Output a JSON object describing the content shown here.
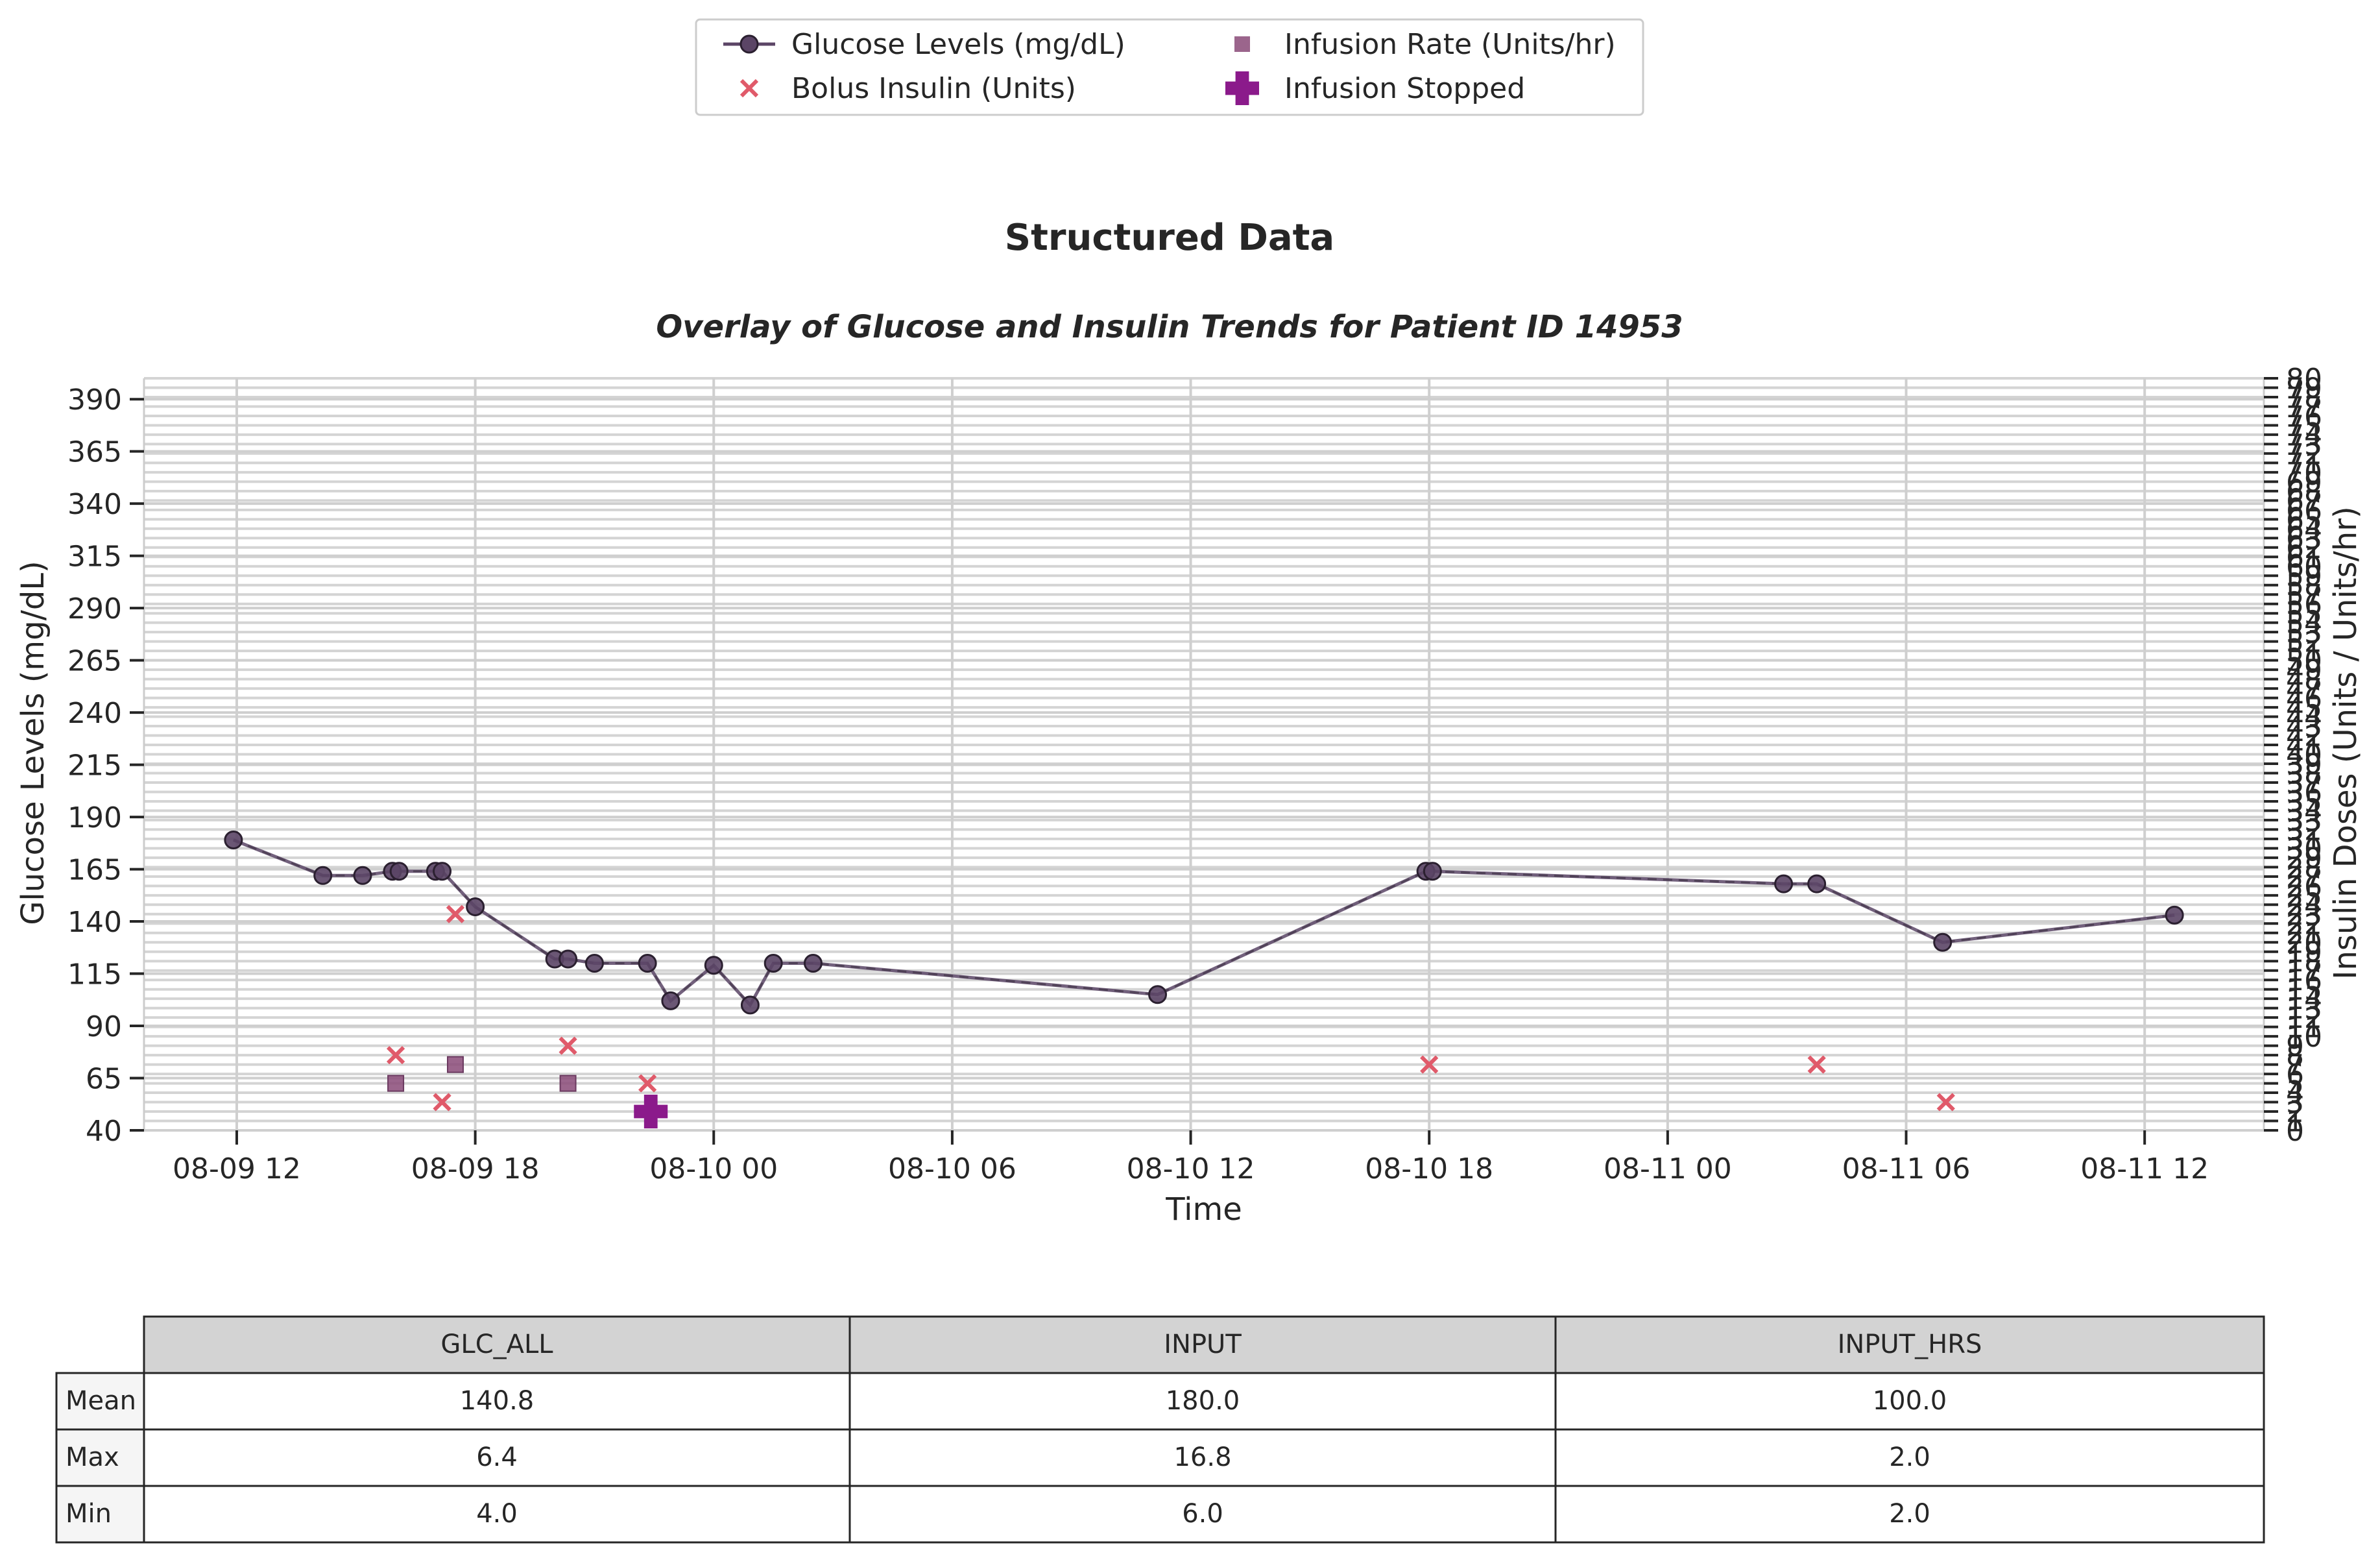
{
  "chart_data": {
    "type": "line",
    "suptitle": "Structured Data",
    "title": "Overlay of Glucose and Insulin Trends for Patient ID 14953",
    "xlabel": "Time",
    "ylabel": "Glucose Levels (mg/dL)",
    "ylabel_right": "Insulin Doses (Units / Units/hr)",
    "ylim": [
      40,
      400
    ],
    "ylim_right": [
      0,
      80
    ],
    "yticks": [
      40,
      65,
      90,
      115,
      140,
      165,
      190,
      215,
      240,
      265,
      290,
      315,
      340,
      365,
      390
    ],
    "yticks_right": [
      0,
      1,
      2,
      3,
      4,
      5,
      6,
      7,
      8,
      9,
      10,
      11,
      12,
      13,
      14,
      15,
      16,
      17,
      18,
      19,
      20,
      21,
      22,
      23,
      24,
      25,
      26,
      27,
      28,
      29,
      30,
      31,
      32,
      33,
      34,
      35,
      36,
      37,
      38,
      39,
      40,
      41,
      42,
      43,
      44,
      45,
      46,
      47,
      48,
      49,
      50,
      51,
      52,
      53,
      54,
      55,
      56,
      57,
      58,
      59,
      60,
      61,
      62,
      63,
      64,
      65,
      66,
      67,
      68,
      69,
      70,
      71,
      72,
      73,
      74,
      75,
      76,
      77,
      78,
      79,
      80
    ],
    "xlim": [
      "2024-08-09 09:40",
      "2024-08-11 15:00"
    ],
    "xticks": [
      {
        "value": "2024-08-09 12:00",
        "label": "08-09 12"
      },
      {
        "value": "2024-08-09 18:00",
        "label": "08-09 18"
      },
      {
        "value": "2024-08-10 00:00",
        "label": "08-10 00"
      },
      {
        "value": "2024-08-10 06:00",
        "label": "08-10 06"
      },
      {
        "value": "2024-08-10 12:00",
        "label": "08-10 12"
      },
      {
        "value": "2024-08-10 18:00",
        "label": "08-10 18"
      },
      {
        "value": "2024-08-11 00:00",
        "label": "08-11 00"
      },
      {
        "value": "2024-08-11 06:00",
        "label": "08-11 06"
      },
      {
        "value": "2024-08-11 12:00",
        "label": "08-11 12"
      }
    ],
    "grid": true,
    "legend_position": "top-center",
    "series": [
      {
        "name": "Glucose Levels (mg/dL)",
        "type": "line",
        "axis": "left",
        "color": "#5b4566",
        "x": [
          "2024-08-09 11:55",
          "2024-08-09 14:10",
          "2024-08-09 15:10",
          "2024-08-09 15:55",
          "2024-08-09 16:05",
          "2024-08-09 17:00",
          "2024-08-09 17:10",
          "2024-08-09 18:00",
          "2024-08-09 20:00",
          "2024-08-09 20:20",
          "2024-08-09 21:00",
          "2024-08-09 22:20",
          "2024-08-09 22:55",
          "2024-08-10 00:00",
          "2024-08-10 00:55",
          "2024-08-10 01:30",
          "2024-08-10 02:30",
          "2024-08-10 11:10",
          "2024-08-10 17:55",
          "2024-08-10 18:05",
          "2024-08-11 02:55",
          "2024-08-11 03:45",
          "2024-08-11 06:55",
          "2024-08-11 12:45"
        ],
        "y": [
          179,
          162,
          162,
          164,
          164,
          164,
          164,
          147,
          122,
          122,
          120,
          120,
          102,
          119,
          100,
          120,
          120,
          105,
          164,
          164,
          158,
          158,
          130,
          143
        ]
      },
      {
        "name": "Bolus Insulin (Units)",
        "type": "scatter",
        "marker": "x",
        "axis": "right",
        "color": "#e05a6a",
        "x": [
          "2024-08-09 16:00",
          "2024-08-09 17:10",
          "2024-08-09 17:30",
          "2024-08-09 20:20",
          "2024-08-09 22:20",
          "2024-08-10 18:00",
          "2024-08-11 03:45",
          "2024-08-11 07:00"
        ],
        "y": [
          8,
          3,
          23,
          9,
          5,
          7,
          7,
          3
        ]
      },
      {
        "name": "Infusion Rate (Units/hr)",
        "type": "scatter",
        "marker": "square",
        "axis": "right",
        "color": "#8a4a78",
        "x": [
          "2024-08-09 16:00",
          "2024-08-09 17:30",
          "2024-08-09 20:20"
        ],
        "y": [
          5,
          7,
          5
        ]
      },
      {
        "name": "Infusion Stopped",
        "type": "scatter",
        "marker": "plus",
        "axis": "right",
        "color": "#8b1a8b",
        "x": [
          "2024-08-09 22:25"
        ],
        "y": [
          2
        ]
      }
    ]
  },
  "table": {
    "columns": [
      "GLC_ALL",
      "INPUT",
      "INPUT_HRS"
    ],
    "rows": [
      {
        "label": "Mean",
        "values": [
          "140.8",
          "180.0",
          "100.0"
        ]
      },
      {
        "label": "Max",
        "values": [
          "6.4",
          "16.8",
          "2.0"
        ]
      },
      {
        "label": "Min",
        "values": [
          "4.0",
          "6.0",
          "2.0"
        ]
      }
    ]
  }
}
